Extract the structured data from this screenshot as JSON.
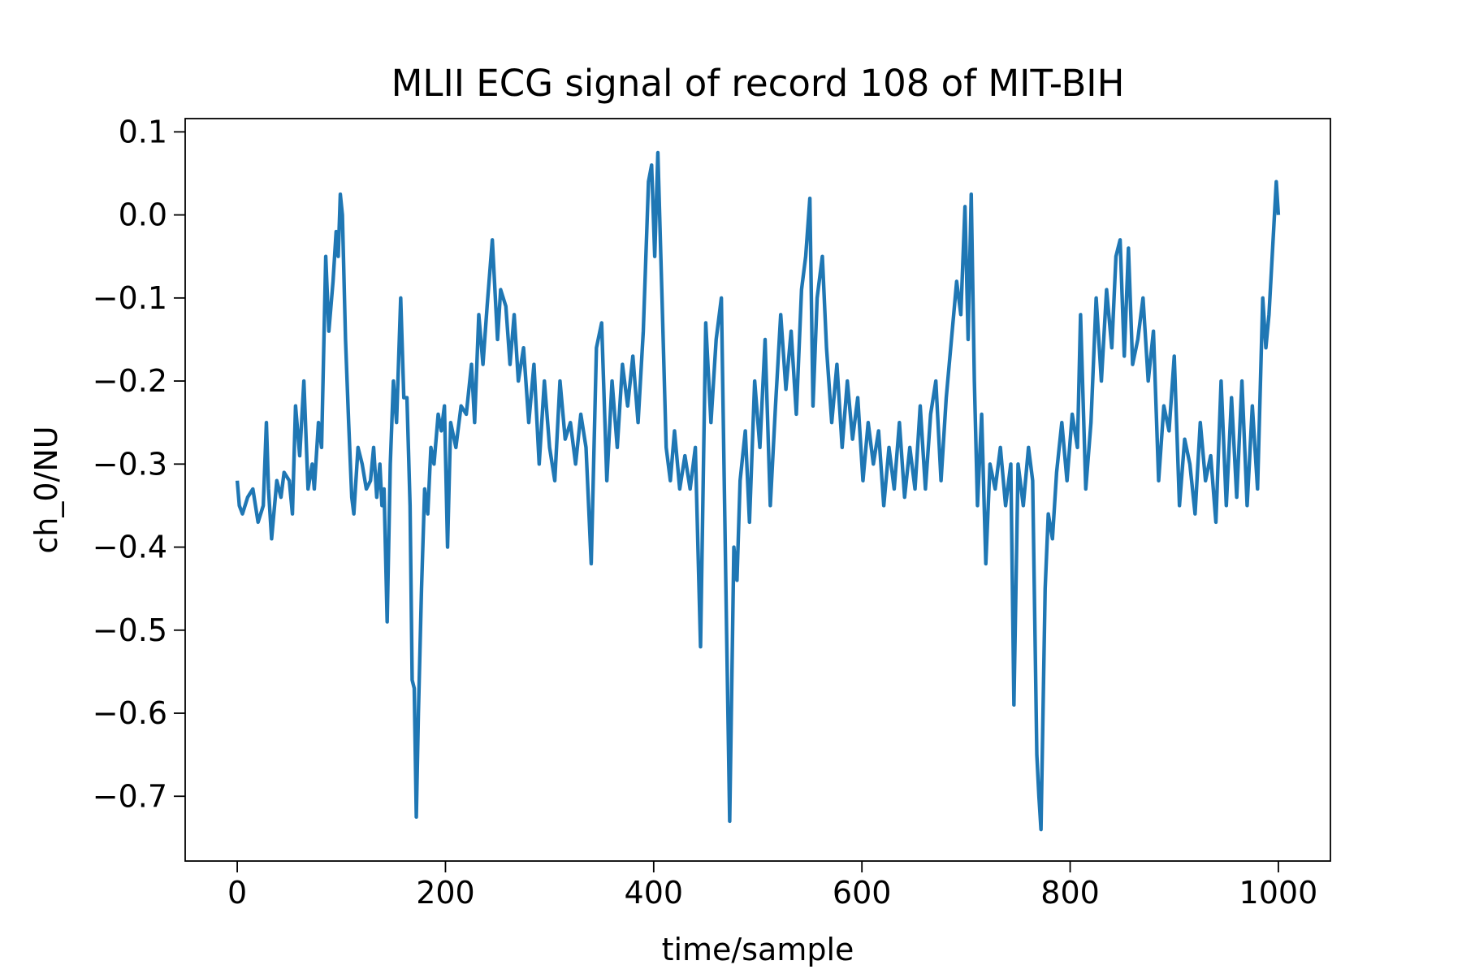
{
  "chart_data": {
    "type": "line",
    "title": "MLII ECG signal of record 108 of MIT-BIH",
    "xlabel": "time/sample",
    "ylabel": "ch_0/NU",
    "color": "#1f77b4",
    "x": [
      0,
      2,
      5,
      10,
      15,
      20,
      25,
      28,
      30,
      33,
      38,
      42,
      45,
      50,
      53,
      56,
      60,
      64,
      68,
      72,
      74,
      78,
      81,
      85,
      88,
      92,
      95,
      97,
      99,
      101,
      104,
      107,
      110,
      112,
      116,
      120,
      124,
      128,
      131,
      134,
      137,
      139,
      141,
      144,
      147,
      150,
      153,
      157,
      160,
      163,
      166,
      168,
      170,
      172,
      174,
      177,
      180,
      183,
      186,
      189,
      193,
      196,
      199,
      202,
      205,
      210,
      215,
      220,
      225,
      228,
      232,
      236,
      240,
      245,
      250,
      253,
      258,
      262,
      266,
      270,
      275,
      280,
      285,
      290,
      295,
      300,
      305,
      310,
      315,
      320,
      325,
      330,
      335,
      340,
      345,
      350,
      355,
      360,
      365,
      370,
      375,
      380,
      385,
      390,
      395,
      398,
      401,
      404,
      408,
      412,
      416,
      420,
      425,
      430,
      435,
      440,
      445,
      450,
      455,
      460,
      465,
      470,
      473,
      477,
      480,
      483,
      488,
      492,
      497,
      502,
      507,
      512,
      517,
      522,
      527,
      532,
      537,
      542,
      546,
      550,
      553,
      557,
      562,
      566,
      571,
      576,
      581,
      586,
      591,
      596,
      601,
      606,
      611,
      616,
      621,
      626,
      631,
      636,
      641,
      646,
      651,
      656,
      661,
      666,
      671,
      676,
      681,
      686,
      691,
      695,
      699,
      702,
      705,
      708,
      711,
      715,
      719,
      723,
      728,
      733,
      738,
      743,
      746,
      750,
      755,
      760,
      764,
      768,
      770,
      772,
      776,
      779,
      783,
      787,
      792,
      797,
      802,
      807,
      810,
      815,
      820,
      825,
      830,
      835,
      840,
      844,
      848,
      852,
      856,
      860,
      865,
      870,
      875,
      880,
      885,
      890,
      895,
      900,
      905,
      910,
      915,
      920,
      925,
      930,
      935,
      940,
      945,
      950,
      955,
      960,
      965,
      970,
      975,
      980,
      985,
      988,
      991,
      998,
      1000
    ],
    "values": [
      -0.32,
      -0.35,
      -0.36,
      -0.34,
      -0.33,
      -0.37,
      -0.35,
      -0.25,
      -0.33,
      -0.39,
      -0.32,
      -0.34,
      -0.31,
      -0.32,
      -0.36,
      -0.23,
      -0.29,
      -0.2,
      -0.33,
      -0.3,
      -0.33,
      -0.25,
      -0.28,
      -0.05,
      -0.14,
      -0.08,
      -0.02,
      -0.05,
      0.025,
      0.0,
      -0.15,
      -0.25,
      -0.34,
      -0.36,
      -0.28,
      -0.3,
      -0.33,
      -0.32,
      -0.28,
      -0.34,
      -0.3,
      -0.35,
      -0.33,
      -0.49,
      -0.3,
      -0.2,
      -0.25,
      -0.1,
      -0.22,
      -0.22,
      -0.35,
      -0.56,
      -0.57,
      -0.725,
      -0.6,
      -0.45,
      -0.33,
      -0.36,
      -0.28,
      -0.3,
      -0.24,
      -0.26,
      -0.23,
      -0.4,
      -0.25,
      -0.28,
      -0.23,
      -0.24,
      -0.18,
      -0.25,
      -0.12,
      -0.18,
      -0.11,
      -0.03,
      -0.15,
      -0.09,
      -0.11,
      -0.18,
      -0.12,
      -0.2,
      -0.16,
      -0.25,
      -0.18,
      -0.3,
      -0.2,
      -0.28,
      -0.32,
      -0.2,
      -0.27,
      -0.25,
      -0.3,
      -0.24,
      -0.28,
      -0.42,
      -0.16,
      -0.13,
      -0.32,
      -0.2,
      -0.28,
      -0.18,
      -0.23,
      -0.17,
      -0.25,
      -0.14,
      0.04,
      0.06,
      -0.05,
      0.075,
      -0.1,
      -0.28,
      -0.32,
      -0.26,
      -0.33,
      -0.29,
      -0.33,
      -0.28,
      -0.52,
      -0.13,
      -0.25,
      -0.15,
      -0.1,
      -0.5,
      -0.73,
      -0.4,
      -0.44,
      -0.32,
      -0.26,
      -0.37,
      -0.2,
      -0.28,
      -0.15,
      -0.35,
      -0.23,
      -0.12,
      -0.21,
      -0.14,
      -0.24,
      -0.09,
      -0.05,
      0.02,
      -0.23,
      -0.1,
      -0.05,
      -0.16,
      -0.25,
      -0.18,
      -0.28,
      -0.2,
      -0.27,
      -0.22,
      -0.32,
      -0.25,
      -0.3,
      -0.26,
      -0.35,
      -0.28,
      -0.33,
      -0.25,
      -0.34,
      -0.28,
      -0.33,
      -0.23,
      -0.33,
      -0.24,
      -0.2,
      -0.32,
      -0.22,
      -0.15,
      -0.08,
      -0.12,
      0.01,
      -0.15,
      0.025,
      -0.2,
      -0.35,
      -0.24,
      -0.42,
      -0.3,
      -0.33,
      -0.28,
      -0.35,
      -0.3,
      -0.59,
      -0.3,
      -0.35,
      -0.28,
      -0.32,
      -0.65,
      -0.7,
      -0.74,
      -0.45,
      -0.36,
      -0.39,
      -0.31,
      -0.25,
      -0.32,
      -0.24,
      -0.28,
      -0.12,
      -0.33,
      -0.25,
      -0.1,
      -0.2,
      -0.09,
      -0.16,
      -0.05,
      -0.03,
      -0.17,
      -0.04,
      -0.18,
      -0.15,
      -0.1,
      -0.2,
      -0.14,
      -0.32,
      -0.23,
      -0.26,
      -0.17,
      -0.35,
      -0.27,
      -0.3,
      -0.36,
      -0.25,
      -0.32,
      -0.29,
      -0.37,
      -0.2,
      -0.35,
      -0.22,
      -0.34,
      -0.2,
      -0.35,
      -0.23,
      -0.33,
      -0.1,
      -0.16,
      -0.12,
      0.04,
      0.0
    ],
    "xlim": [
      -50,
      1050
    ],
    "xticks": [
      0,
      200,
      400,
      600,
      800,
      1000
    ],
    "ylim": [
      -0.778,
      0.116
    ],
    "yticks": [
      {
        "value": -0.7,
        "label": "−0.7"
      },
      {
        "value": -0.6,
        "label": "−0.6"
      },
      {
        "value": -0.5,
        "label": "−0.5"
      },
      {
        "value": -0.4,
        "label": "−0.4"
      },
      {
        "value": -0.3,
        "label": "−0.3"
      },
      {
        "value": -0.2,
        "label": "−0.2"
      },
      {
        "value": -0.1,
        "label": "−0.1"
      },
      {
        "value": 0.0,
        "label": "0.0"
      },
      0.1
    ],
    "grid": false
  }
}
